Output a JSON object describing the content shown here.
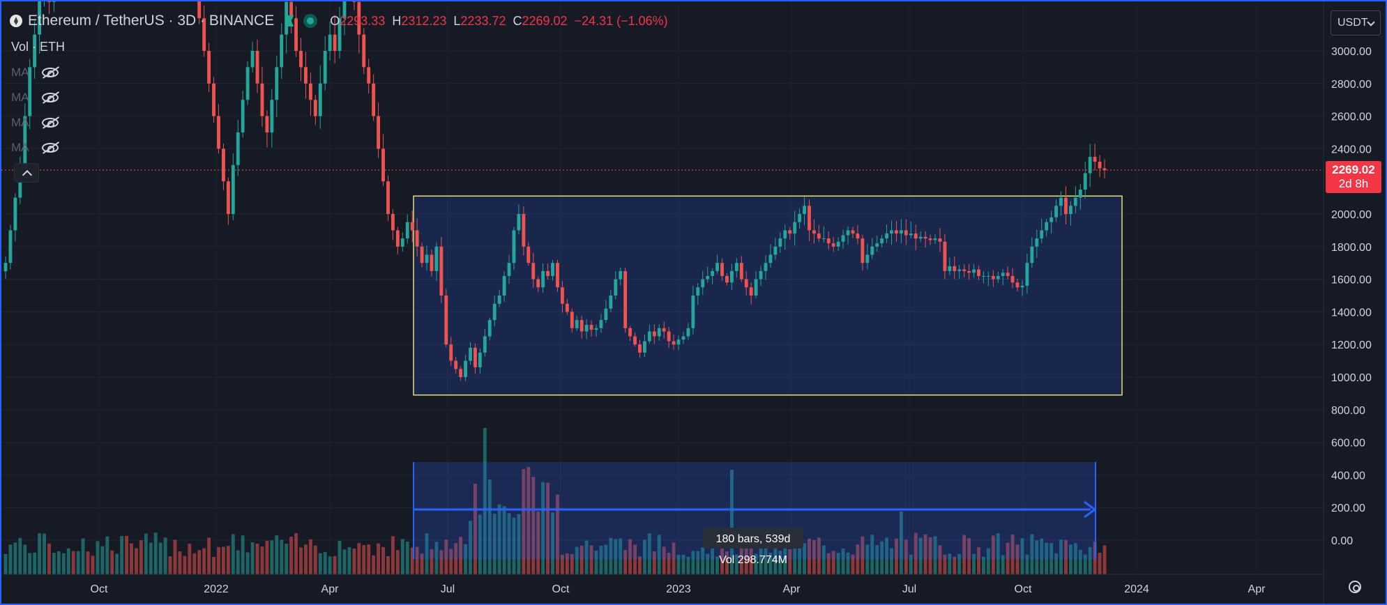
{
  "header": {
    "title": "Ethereum / TetherUS · 3D · BINANCE",
    "open_label": "O",
    "open": "2293.33",
    "high_label": "H",
    "high": "2312.23",
    "low_label": "L",
    "low": "2233.72",
    "close_label": "C",
    "close": "2269.02",
    "change": "−24.31 (−1.06%)"
  },
  "indicators": {
    "volume_label": "Vol · ETH",
    "ma_labels": [
      "MA",
      "MA",
      "MA",
      "MA"
    ]
  },
  "currency": "USDT",
  "last_price": {
    "price": "2269.02",
    "countdown": "2d 8h"
  },
  "measure": {
    "bars": "180 bars, 539d",
    "volume": "Vol 298.774M"
  },
  "colors": {
    "up": "#26a69a",
    "down": "#ef5350",
    "rect_border": "#e5e17a",
    "measure": "#2962ff"
  },
  "chart_data": {
    "type": "candlestick",
    "y_ticks": [
      "3000.00",
      "2800.00",
      "2600.00",
      "2400.00",
      "2000.00",
      "1800.00",
      "1600.00",
      "1400.00",
      "1200.00",
      "1000.00",
      "800.00",
      "600.00",
      "400.00",
      "200.00",
      "0.00"
    ],
    "x_ticks": [
      "Oct",
      "2022",
      "Apr",
      "Jul",
      "Oct",
      "2023",
      "Apr",
      "Jul",
      "Oct",
      "2024",
      "Apr"
    ],
    "ylim": [
      0,
      3200
    ],
    "rectangle": {
      "high": 2110,
      "low": 890,
      "start": "2022-06-12",
      "end": "2023-12-03"
    },
    "closes": [
      1700,
      1900,
      2100,
      2300,
      2600,
      2900,
      3100,
      3350,
      3500,
      3300,
      3400,
      3600,
      3800,
      3900,
      3700,
      3900,
      4000,
      3800,
      3600,
      3900,
      4100,
      4300,
      4200,
      4400,
      4600,
      4500,
      4200,
      4000,
      3800,
      3900,
      4100,
      4300,
      4500,
      4700,
      4600,
      4400,
      4200,
      4000,
      3800,
      3500,
      3200,
      3000,
      2800,
      2600,
      2400,
      2200,
      2000,
      2300,
      2500,
      2700,
      2900,
      3000,
      2800,
      2600,
      2500,
      2700,
      2900,
      3100,
      3300,
      3200,
      3000,
      2900,
      2800,
      2700,
      2600,
      2800,
      3000,
      3100,
      3000,
      3200,
      3400,
      3500,
      3300,
      3100,
      2900,
      2800,
      2600,
      2400,
      2200,
      2000,
      1900,
      1800,
      1850,
      1950,
      1900,
      1800,
      1700,
      1750,
      1650,
      1800,
      1500,
      1200,
      1100,
      1050,
      1000,
      1100,
      1180,
      1060,
      1150,
      1250,
      1350,
      1450,
      1500,
      1620,
      1700,
      1900,
      2000,
      1800,
      1700,
      1600,
      1550,
      1650,
      1620,
      1700,
      1550,
      1450,
      1400,
      1300,
      1350,
      1280,
      1320,
      1290,
      1300,
      1350,
      1420,
      1500,
      1600,
      1650,
      1300,
      1250,
      1200,
      1150,
      1220,
      1280,
      1250,
      1300,
      1280,
      1220,
      1200,
      1230,
      1250,
      1300,
      1500,
      1550,
      1600,
      1620,
      1650,
      1700,
      1620,
      1580,
      1650,
      1700,
      1600,
      1550,
      1500,
      1600,
      1650,
      1700,
      1750,
      1800,
      1850,
      1900,
      1880,
      1950,
      2000,
      2050,
      1900,
      1880,
      1850,
      1850,
      1820,
      1800,
      1830,
      1870,
      1900,
      1880,
      1850,
      1700,
      1750,
      1800,
      1820,
      1850,
      1880,
      1900,
      1880,
      1900,
      1870,
      1880,
      1850,
      1860,
      1850,
      1840,
      1850,
      1830,
      1650,
      1680,
      1650,
      1660,
      1650,
      1640,
      1660,
      1620,
      1620,
      1620,
      1600,
      1620,
      1640,
      1620,
      1580,
      1550,
      1560,
      1700,
      1800,
      1850,
      1900,
      1950,
      1980,
      2050,
      2100,
      2000,
      2050,
      2100,
      2150,
      2250,
      2350,
      2320,
      2280,
      2269
    ]
  }
}
